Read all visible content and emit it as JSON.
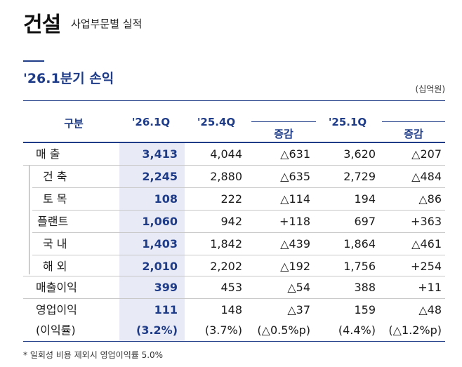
{
  "header": {
    "title": "건설",
    "subtitle": "사업부문별 실적"
  },
  "section": {
    "title": "'26.1분기 손익",
    "unit": "(십억원)"
  },
  "columns": {
    "category": "구분",
    "q1_26": "'26.1Q",
    "q4_25": "'25.4Q",
    "change_qoq": "증감",
    "q1_25": "'25.1Q",
    "change_yoy": "증감"
  },
  "rows": [
    {
      "label": "매    출",
      "q1_26": "3,413",
      "q4_25": "4,044",
      "qoq": "△631",
      "q1_25": "3,620",
      "yoy": "△207"
    },
    {
      "label": "건    축",
      "q1_26": "2,245",
      "q4_25": "2,880",
      "qoq": "△635",
      "q1_25": "2,729",
      "yoy": "△484"
    },
    {
      "label": "토    목",
      "q1_26": "108",
      "q4_25": "222",
      "qoq": "△114",
      "q1_25": "194",
      "yoy": "△86"
    },
    {
      "label": "플랜트",
      "q1_26": "1,060",
      "q4_25": "942",
      "qoq": "+118",
      "q1_25": "697",
      "yoy": "+363"
    },
    {
      "label": "국    내",
      "q1_26": "1,403",
      "q4_25": "1,842",
      "qoq": "△439",
      "q1_25": "1,864",
      "yoy": "△461"
    },
    {
      "label": "해    외",
      "q1_26": "2,010",
      "q4_25": "2,202",
      "qoq": "△192",
      "q1_25": "1,756",
      "yoy": "+254"
    },
    {
      "label": "매출이익",
      "q1_26": "399",
      "q4_25": "453",
      "qoq": "△54",
      "q1_25": "388",
      "yoy": "+11"
    },
    {
      "label": "영업이익",
      "q1_26": "111",
      "q4_25": "148",
      "qoq": "△37",
      "q1_25": "159",
      "yoy": "△48"
    },
    {
      "label": "(이익률)",
      "q1_26": "(3.2%)",
      "q4_25": "(3.7%)",
      "qoq": "(△0.5%p)",
      "q1_25": "(4.4%)",
      "yoy": "(△1.2%p)"
    }
  ],
  "footnote": "* 일회성 비용 제외시 영업이익률 5.0%"
}
